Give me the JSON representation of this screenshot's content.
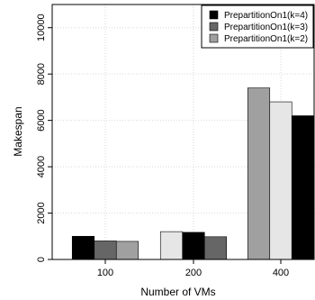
{
  "chart_data": {
    "type": "bar",
    "xlabel": "Number of VMs",
    "ylabel": "Makespan",
    "categories": [
      "100",
      "200",
      "400"
    ],
    "ylim": [
      0,
      11000
    ],
    "yticks": [
      0,
      2000,
      4000,
      6000,
      8000,
      10000
    ],
    "grid": true,
    "legend_position": "top-right",
    "bars": [
      [
        {
          "value": 1000,
          "color": "#000000"
        },
        {
          "value": 800,
          "color": "#666666"
        },
        {
          "value": 780,
          "color": "#a0a0a0"
        }
      ],
      [
        {
          "value": 1200,
          "color": "#e6e6e6"
        },
        {
          "value": 1170,
          "color": "#000000"
        },
        {
          "value": 980,
          "color": "#666666"
        }
      ],
      [
        {
          "value": 7400,
          "color": "#a0a0a0"
        },
        {
          "value": 6800,
          "color": "#e6e6e6"
        },
        {
          "value": 6200,
          "color": "#000000"
        }
      ]
    ],
    "legend": [
      {
        "label": "PrepartitionOn1(k=4)",
        "color": "#000000"
      },
      {
        "label": "PrepartitionOn1(k=3)",
        "color": "#666666"
      },
      {
        "label": "PrepartitionOn1(k=2)",
        "color": "#a0a0a0"
      }
    ]
  }
}
